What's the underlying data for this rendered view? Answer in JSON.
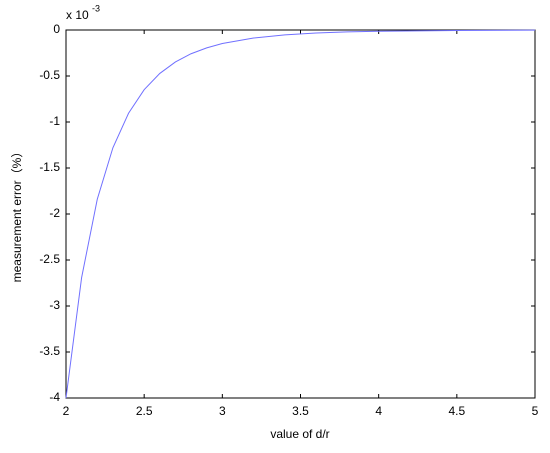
{
  "chart_data": {
    "type": "line",
    "ylabel": "measurement error（%）",
    "xlabel": "value of d/r",
    "multiplier": {
      "base": "x 10",
      "exponent": "-3"
    },
    "x": [
      2,
      2.1,
      2.2,
      2.3,
      2.4,
      2.5,
      2.6,
      2.7,
      2.8,
      2.9,
      3,
      3.2,
      3.4,
      3.6,
      3.8,
      4,
      4.5,
      5
    ],
    "values": [
      -4,
      -2.69,
      -1.84,
      -1.28,
      -0.905,
      -0.649,
      -0.472,
      -0.347,
      -0.258,
      -0.194,
      -0.147,
      -0.087,
      -0.053,
      -0.033,
      -0.021,
      -0.014,
      -0.005,
      -0.002
    ],
    "color": "#7070ff",
    "xlim": [
      2,
      5
    ],
    "xticks": [
      2,
      2.5,
      3,
      3.5,
      4,
      4.5,
      5
    ],
    "ylim": [
      -4,
      0
    ],
    "yticks": [
      -4,
      -3.5,
      -3,
      -2.5,
      -2,
      -1.5,
      -1,
      -0.5,
      0
    ],
    "grid": false
  }
}
